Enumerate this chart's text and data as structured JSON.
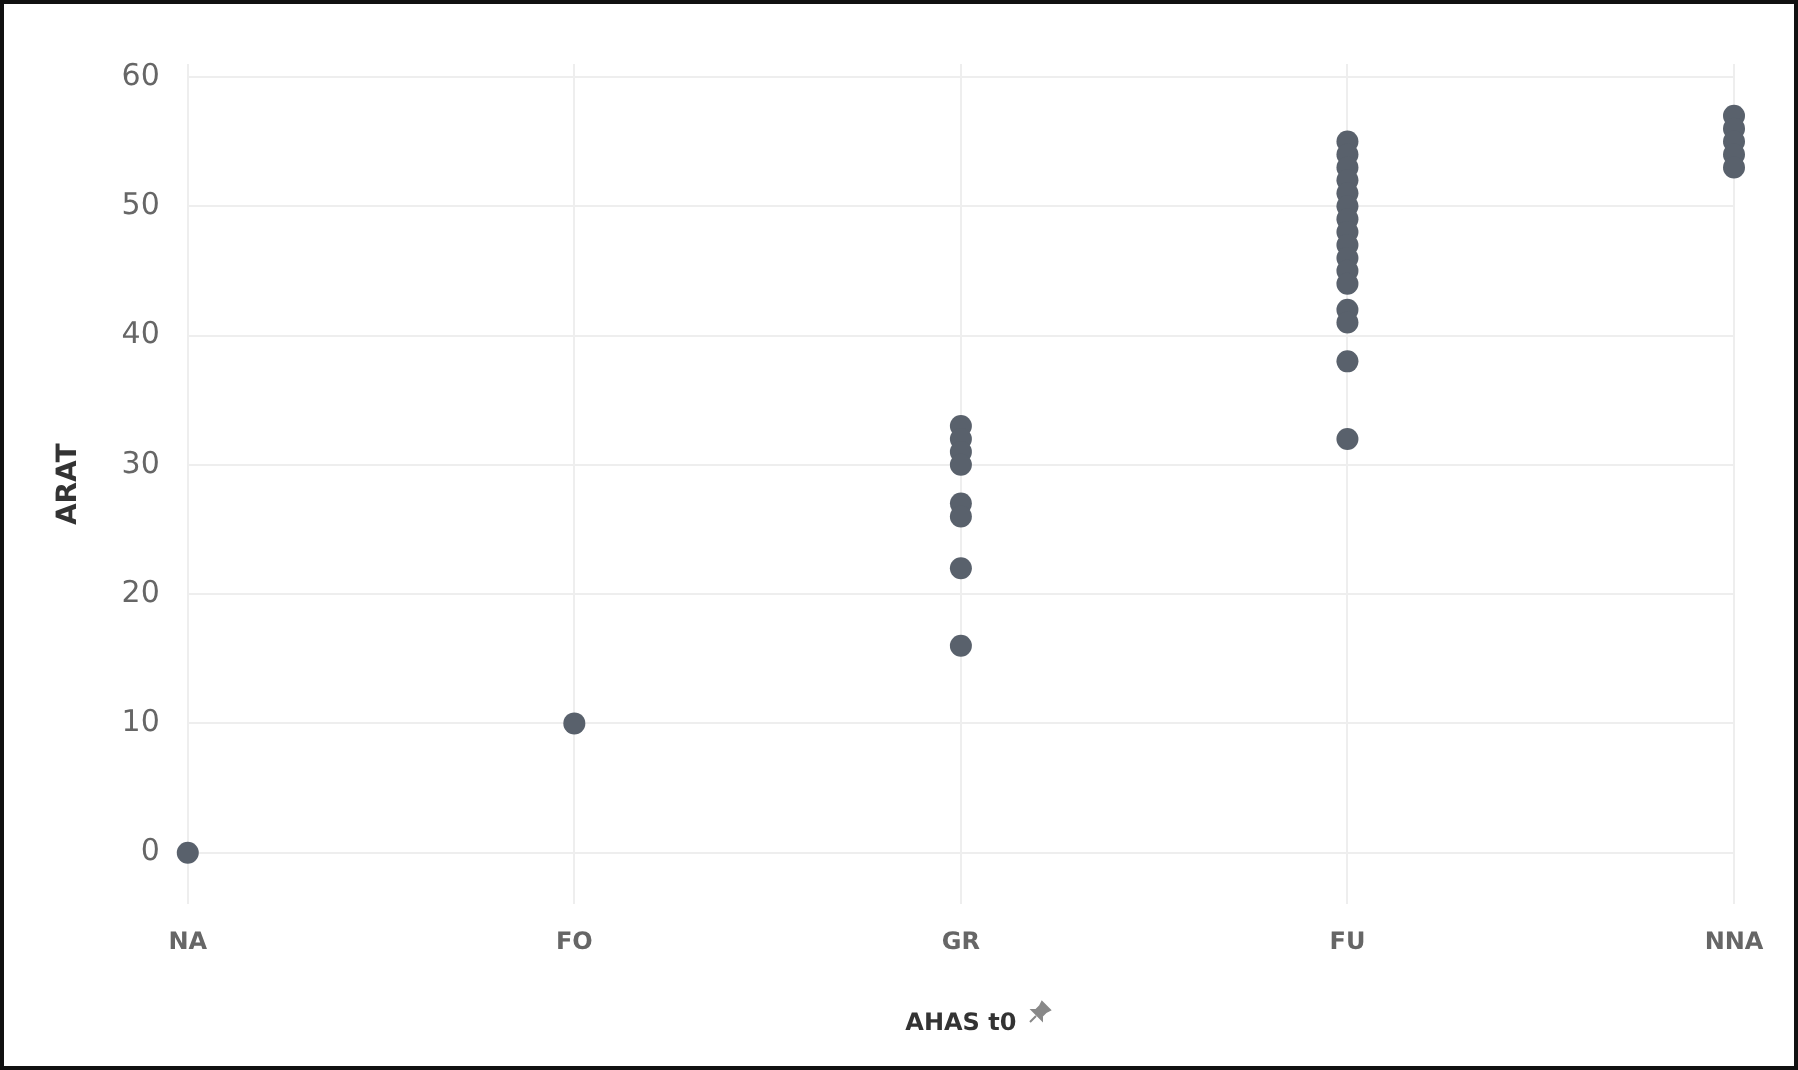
{
  "chart_data": {
    "type": "scatter",
    "xlabel": "AHAS t0",
    "ylabel": "ARAT",
    "categories": [
      "NA",
      "FO",
      "GR",
      "FU",
      "NNA"
    ],
    "series": [
      {
        "color": "#59616c",
        "x": [
          "NA",
          "FO",
          "GR",
          "GR",
          "GR",
          "GR",
          "GR",
          "GR",
          "GR",
          "GR",
          "FU",
          "FU",
          "FU",
          "FU",
          "FU",
          "FU",
          "FU",
          "FU",
          "FU",
          "FU",
          "FU",
          "FU",
          "FU",
          "FU",
          "FU",
          "FU",
          "NNA",
          "NNA",
          "NNA",
          "NNA",
          "NNA"
        ],
        "values": [
          0,
          10,
          33,
          32,
          31,
          30,
          27,
          26,
          22,
          16,
          55,
          54,
          53,
          52,
          51,
          50,
          49,
          48,
          47,
          46,
          45,
          44,
          42,
          41,
          38,
          32,
          57,
          56,
          55,
          54,
          53
        ]
      }
    ],
    "ylim": [
      -4,
      61
    ],
    "yticks": [
      0,
      10,
      20,
      30,
      40,
      50,
      60
    ],
    "grid": true,
    "marker": "circle",
    "legend": false
  }
}
